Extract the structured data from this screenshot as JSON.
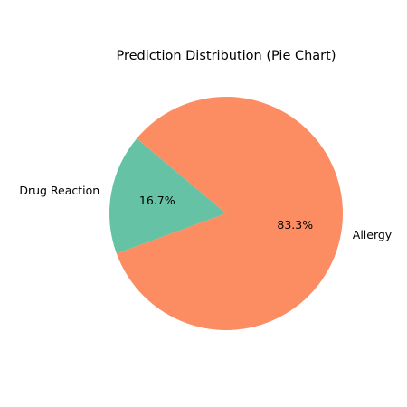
{
  "chart_data": {
    "type": "pie",
    "title": "Prediction Distribution (Pie Chart)",
    "slices": [
      {
        "label": "Drug Reaction",
        "value": 16.7,
        "percent_label": "16.7%",
        "color": "#66c2a5"
      },
      {
        "label": "Allergy",
        "value": 83.3,
        "percent_label": "83.3%",
        "color": "#fc8d62"
      }
    ]
  }
}
